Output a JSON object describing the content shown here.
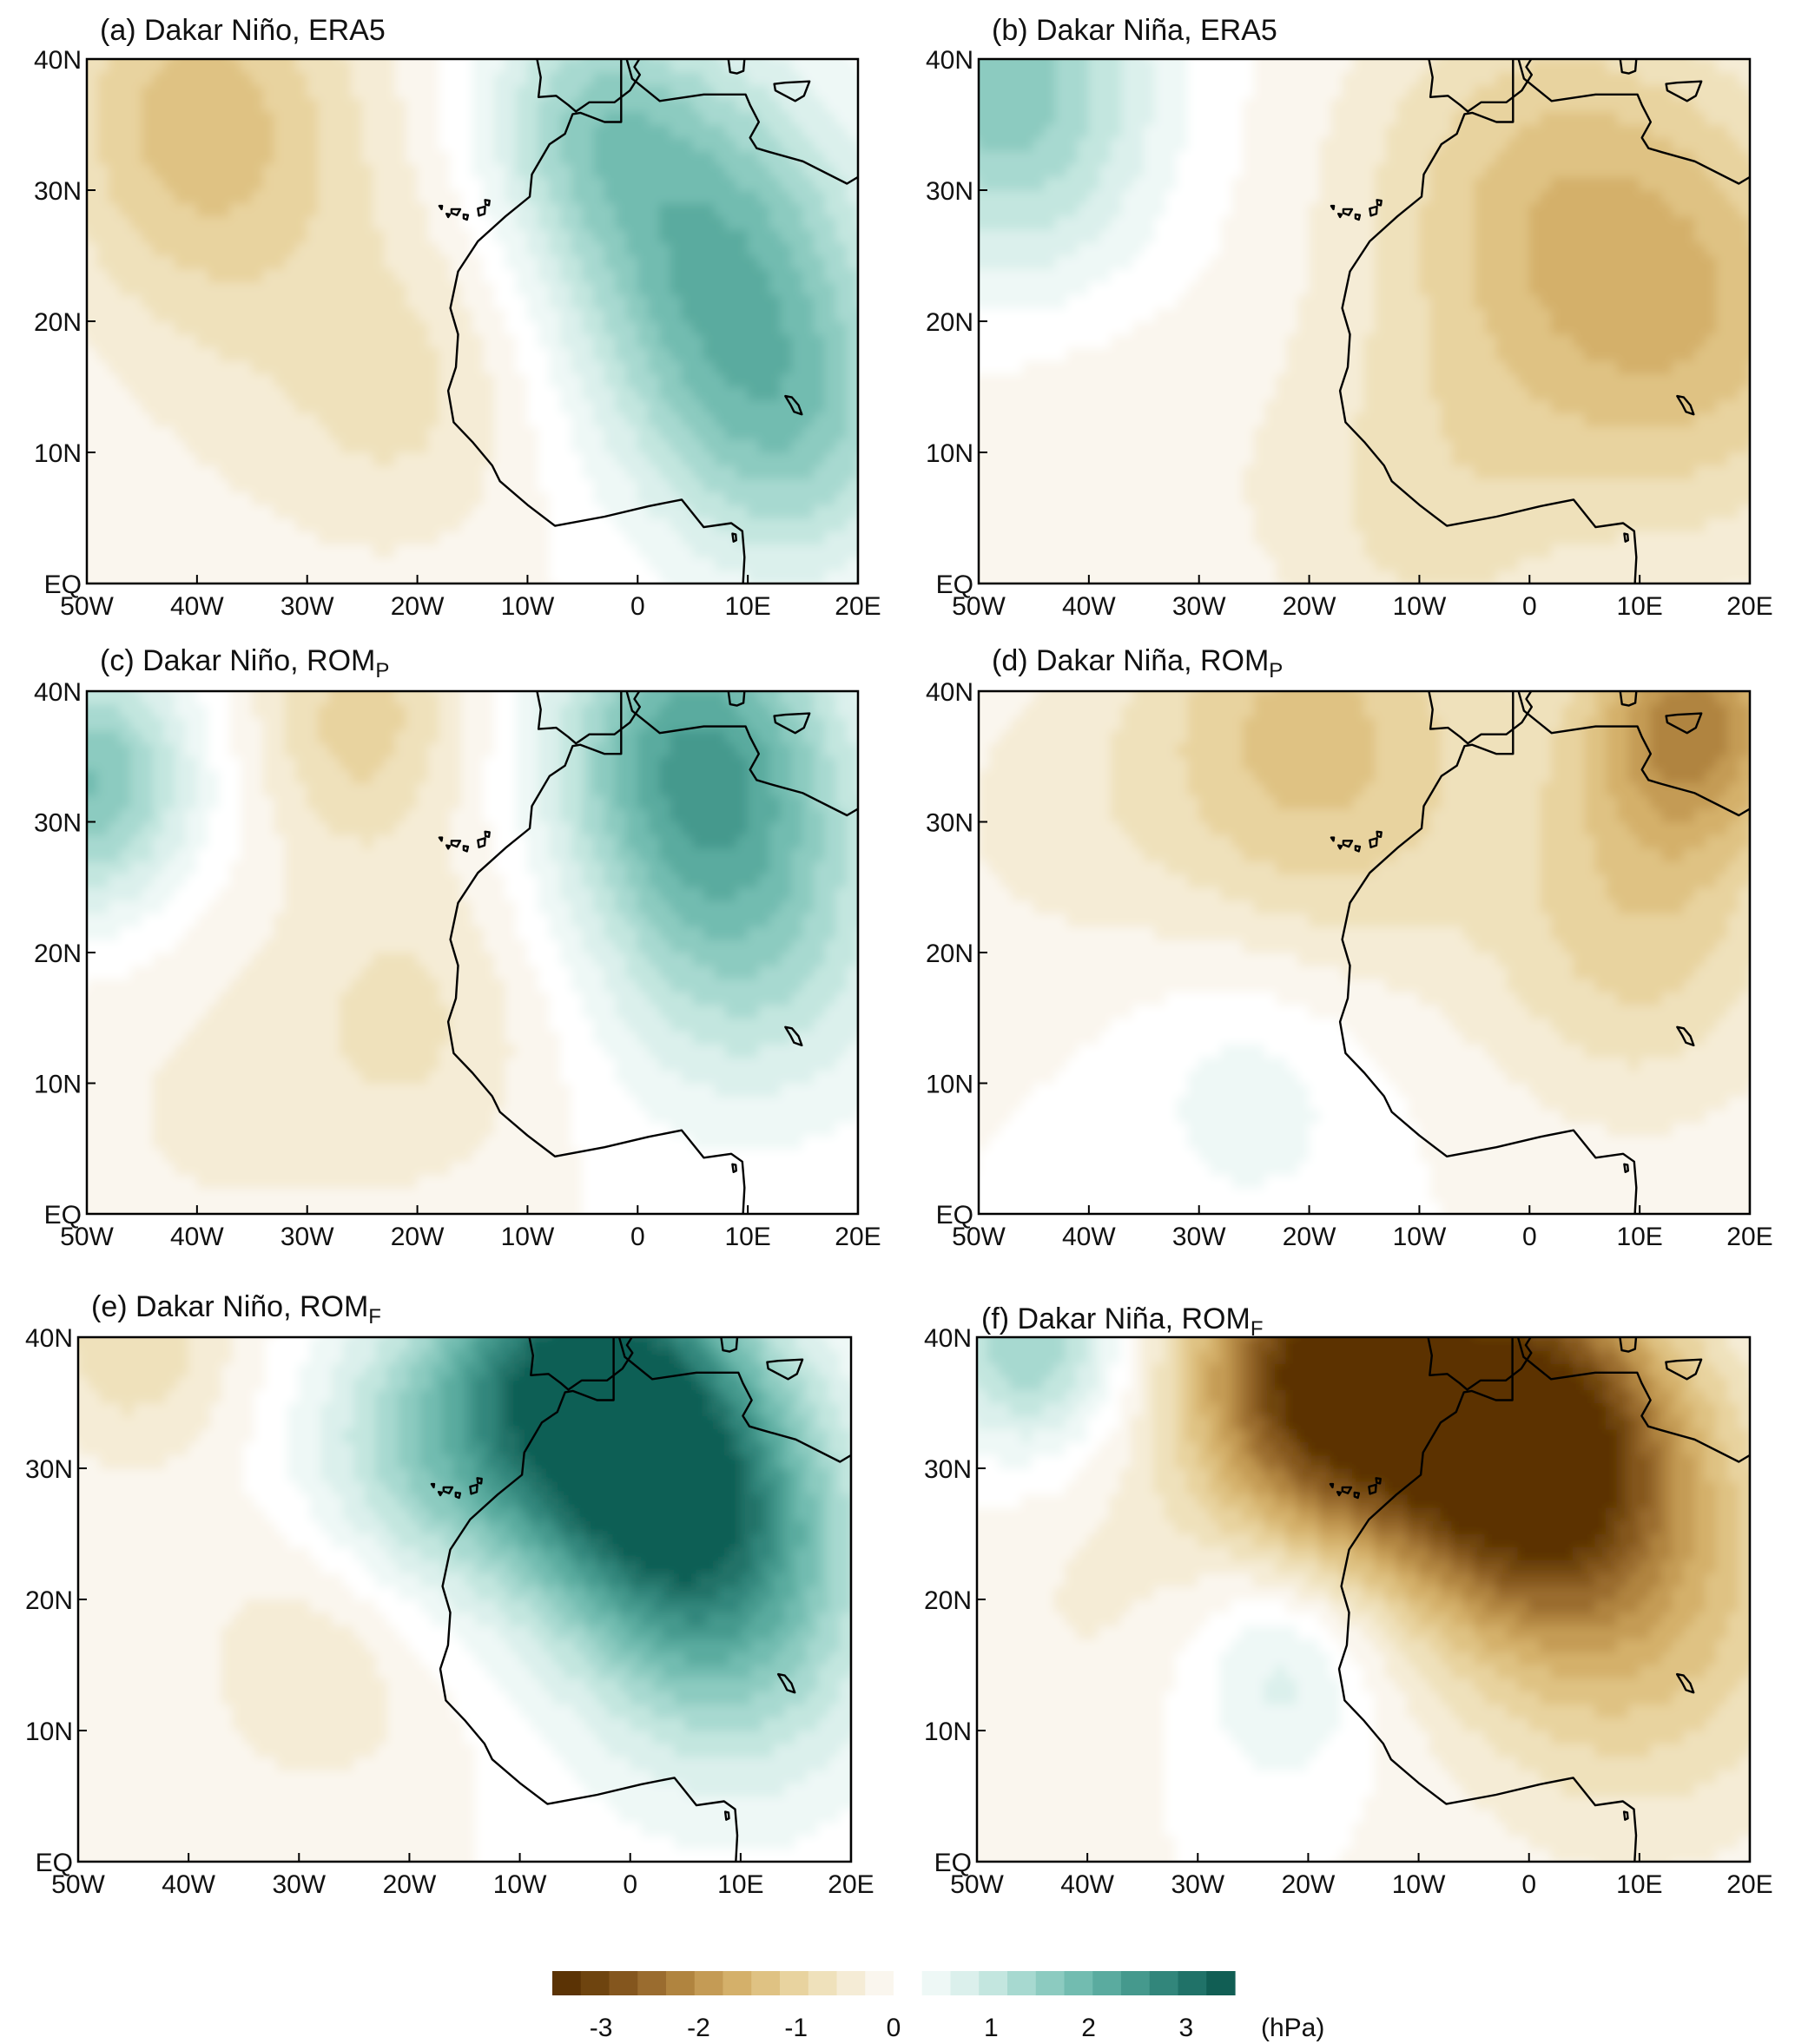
{
  "chart_data": [
    {
      "type": "heatmap",
      "panel": "a",
      "title_main": "(a) Dakar Niño, ERA5",
      "title_sub": "",
      "xticks": [
        "50W",
        "40W",
        "30W",
        "20W",
        "10W",
        "0",
        "10E",
        "20E"
      ],
      "yticks": [
        "40N",
        "30N",
        "20N",
        "10N",
        "EQ"
      ],
      "xlim": [
        -50,
        20
      ],
      "ylim": [
        0,
        40
      ],
      "anomaly_centers": [
        {
          "lon": -40,
          "lat": 36,
          "value": -1.2,
          "spread": 10
        },
        {
          "lon": -30,
          "lat": 20,
          "value": -0.4,
          "spread": 14
        },
        {
          "lon": -20,
          "lat": 14,
          "value": -0.4,
          "spread": 8
        },
        {
          "lon": 5,
          "lat": 28,
          "value": 1.3,
          "spread": 10
        },
        {
          "lon": 10,
          "lat": 18,
          "value": 1.1,
          "spread": 10
        },
        {
          "lon": -5,
          "lat": 36,
          "value": 1.0,
          "spread": 7
        },
        {
          "lon": 15,
          "lat": 10,
          "value": 0.8,
          "spread": 8
        }
      ]
    },
    {
      "type": "heatmap",
      "panel": "b",
      "title_main": "(b) Dakar Niña, ERA5",
      "title_sub": "",
      "xticks": [
        "50W",
        "40W",
        "30W",
        "20W",
        "10W",
        "0",
        "10E",
        "20E"
      ],
      "yticks": [
        "40N",
        "30N",
        "20N",
        "10N",
        "EQ"
      ],
      "xlim": [
        -50,
        20
      ],
      "ylim": [
        0,
        40
      ],
      "anomaly_centers": [
        {
          "lon": -48,
          "lat": 40,
          "value": 1.4,
          "spread": 9
        },
        {
          "lon": -45,
          "lat": 30,
          "value": 0.5,
          "spread": 9
        },
        {
          "lon": 0,
          "lat": 30,
          "value": -1.0,
          "spread": 12
        },
        {
          "lon": 15,
          "lat": 20,
          "value": -1.2,
          "spread": 12
        },
        {
          "lon": -10,
          "lat": 5,
          "value": -0.6,
          "spread": 10
        },
        {
          "lon": -40,
          "lat": 10,
          "value": -0.3,
          "spread": 10
        }
      ]
    },
    {
      "type": "heatmap",
      "panel": "c",
      "title_main": "(c) Dakar Niño, ROM",
      "title_sub": "P",
      "xticks": [
        "50W",
        "40W",
        "30W",
        "20W",
        "10W",
        "0",
        "10E",
        "20E"
      ],
      "yticks": [
        "40N",
        "30N",
        "20N",
        "10N",
        "EQ"
      ],
      "xlim": [
        -50,
        20
      ],
      "ylim": [
        0,
        40
      ],
      "anomaly_centers": [
        {
          "lon": -50,
          "lat": 33,
          "value": 1.8,
          "spread": 7
        },
        {
          "lon": -25,
          "lat": 38,
          "value": -1.0,
          "spread": 7
        },
        {
          "lon": 5,
          "lat": 36,
          "value": 2.0,
          "spread": 9
        },
        {
          "lon": 10,
          "lat": 22,
          "value": 1.3,
          "spread": 10
        },
        {
          "lon": -20,
          "lat": 15,
          "value": -0.6,
          "spread": 9
        },
        {
          "lon": -40,
          "lat": 8,
          "value": -0.3,
          "spread": 12
        }
      ]
    },
    {
      "type": "heatmap",
      "panel": "d",
      "title_main": "(d) Dakar Niña, ROM",
      "title_sub": "P",
      "xticks": [
        "50W",
        "40W",
        "30W",
        "20W",
        "10W",
        "0",
        "10E",
        "20E"
      ],
      "yticks": [
        "40N",
        "30N",
        "20N",
        "10N",
        "EQ"
      ],
      "xlim": [
        -50,
        20
      ],
      "ylim": [
        0,
        40
      ],
      "anomaly_centers": [
        {
          "lon": -20,
          "lat": 36,
          "value": -1.3,
          "spread": 12
        },
        {
          "lon": 15,
          "lat": 38,
          "value": -2.0,
          "spread": 7
        },
        {
          "lon": 10,
          "lat": 22,
          "value": -1.0,
          "spread": 10
        },
        {
          "lon": -25,
          "lat": 10,
          "value": 0.5,
          "spread": 8
        },
        {
          "lon": -45,
          "lat": 30,
          "value": -0.3,
          "spread": 8
        }
      ]
    },
    {
      "type": "heatmap",
      "panel": "e",
      "title_main": "(e) Dakar Niño, ROM",
      "title_sub": "F",
      "xticks": [
        "50W",
        "40W",
        "30W",
        "20W",
        "10W",
        "0",
        "10E",
        "20E"
      ],
      "yticks": [
        "40N",
        "30N",
        "20N",
        "10N",
        "EQ"
      ],
      "xlim": [
        -50,
        20
      ],
      "ylim": [
        0,
        40
      ],
      "anomaly_centers": [
        {
          "lon": -5,
          "lat": 37,
          "value": 3.0,
          "spread": 9
        },
        {
          "lon": 5,
          "lat": 28,
          "value": 2.4,
          "spread": 9
        },
        {
          "lon": 10,
          "lat": 18,
          "value": 1.2,
          "spread": 10
        },
        {
          "lon": -20,
          "lat": 30,
          "value": 1.0,
          "spread": 8
        },
        {
          "lon": -45,
          "lat": 40,
          "value": -0.8,
          "spread": 7
        },
        {
          "lon": -28,
          "lat": 16,
          "value": -0.6,
          "spread": 8
        }
      ]
    },
    {
      "type": "heatmap",
      "panel": "f",
      "title_main": "(f) Dakar Niña, ROM",
      "title_sub": "F",
      "xticks": [
        "50W",
        "40W",
        "30W",
        "20W",
        "10W",
        "0",
        "10E",
        "20E"
      ],
      "yticks": [
        "40N",
        "30N",
        "20N",
        "10N",
        "EQ"
      ],
      "xlim": [
        -50,
        20
      ],
      "ylim": [
        0,
        40
      ],
      "anomaly_centers": [
        {
          "lon": -18,
          "lat": 37,
          "value": -3.5,
          "spread": 9
        },
        {
          "lon": 0,
          "lat": 32,
          "value": -3.5,
          "spread": 9
        },
        {
          "lon": 10,
          "lat": 20,
          "value": -1.3,
          "spread": 12
        },
        {
          "lon": -45,
          "lat": 40,
          "value": 1.5,
          "spread": 6
        },
        {
          "lon": -22,
          "lat": 15,
          "value": 0.8,
          "spread": 6
        },
        {
          "lon": -40,
          "lat": 20,
          "value": -0.3,
          "spread": 8
        }
      ]
    }
  ],
  "colorbar": {
    "label": "(hPa)",
    "ticks": [
      "-3",
      "-2",
      "-1",
      "0",
      "1",
      "2",
      "3"
    ],
    "levels": [
      -3.5,
      3.5
    ],
    "colors": [
      "#5b3305",
      "#6e440f",
      "#84561e",
      "#9a6c2f",
      "#b0843f",
      "#c49b55",
      "#d4b06a",
      "#dfc283",
      "#e8d39f",
      "#efe1bb",
      "#f5ecd6",
      "#faf6ee",
      "#ffffff",
      "#eef8f6",
      "#dbf0ec",
      "#c3e6df",
      "#a7d9d0",
      "#8ccbc0",
      "#72bcb0",
      "#5aab9f",
      "#45998d",
      "#32867b",
      "#207268",
      "#115e54"
    ]
  }
}
